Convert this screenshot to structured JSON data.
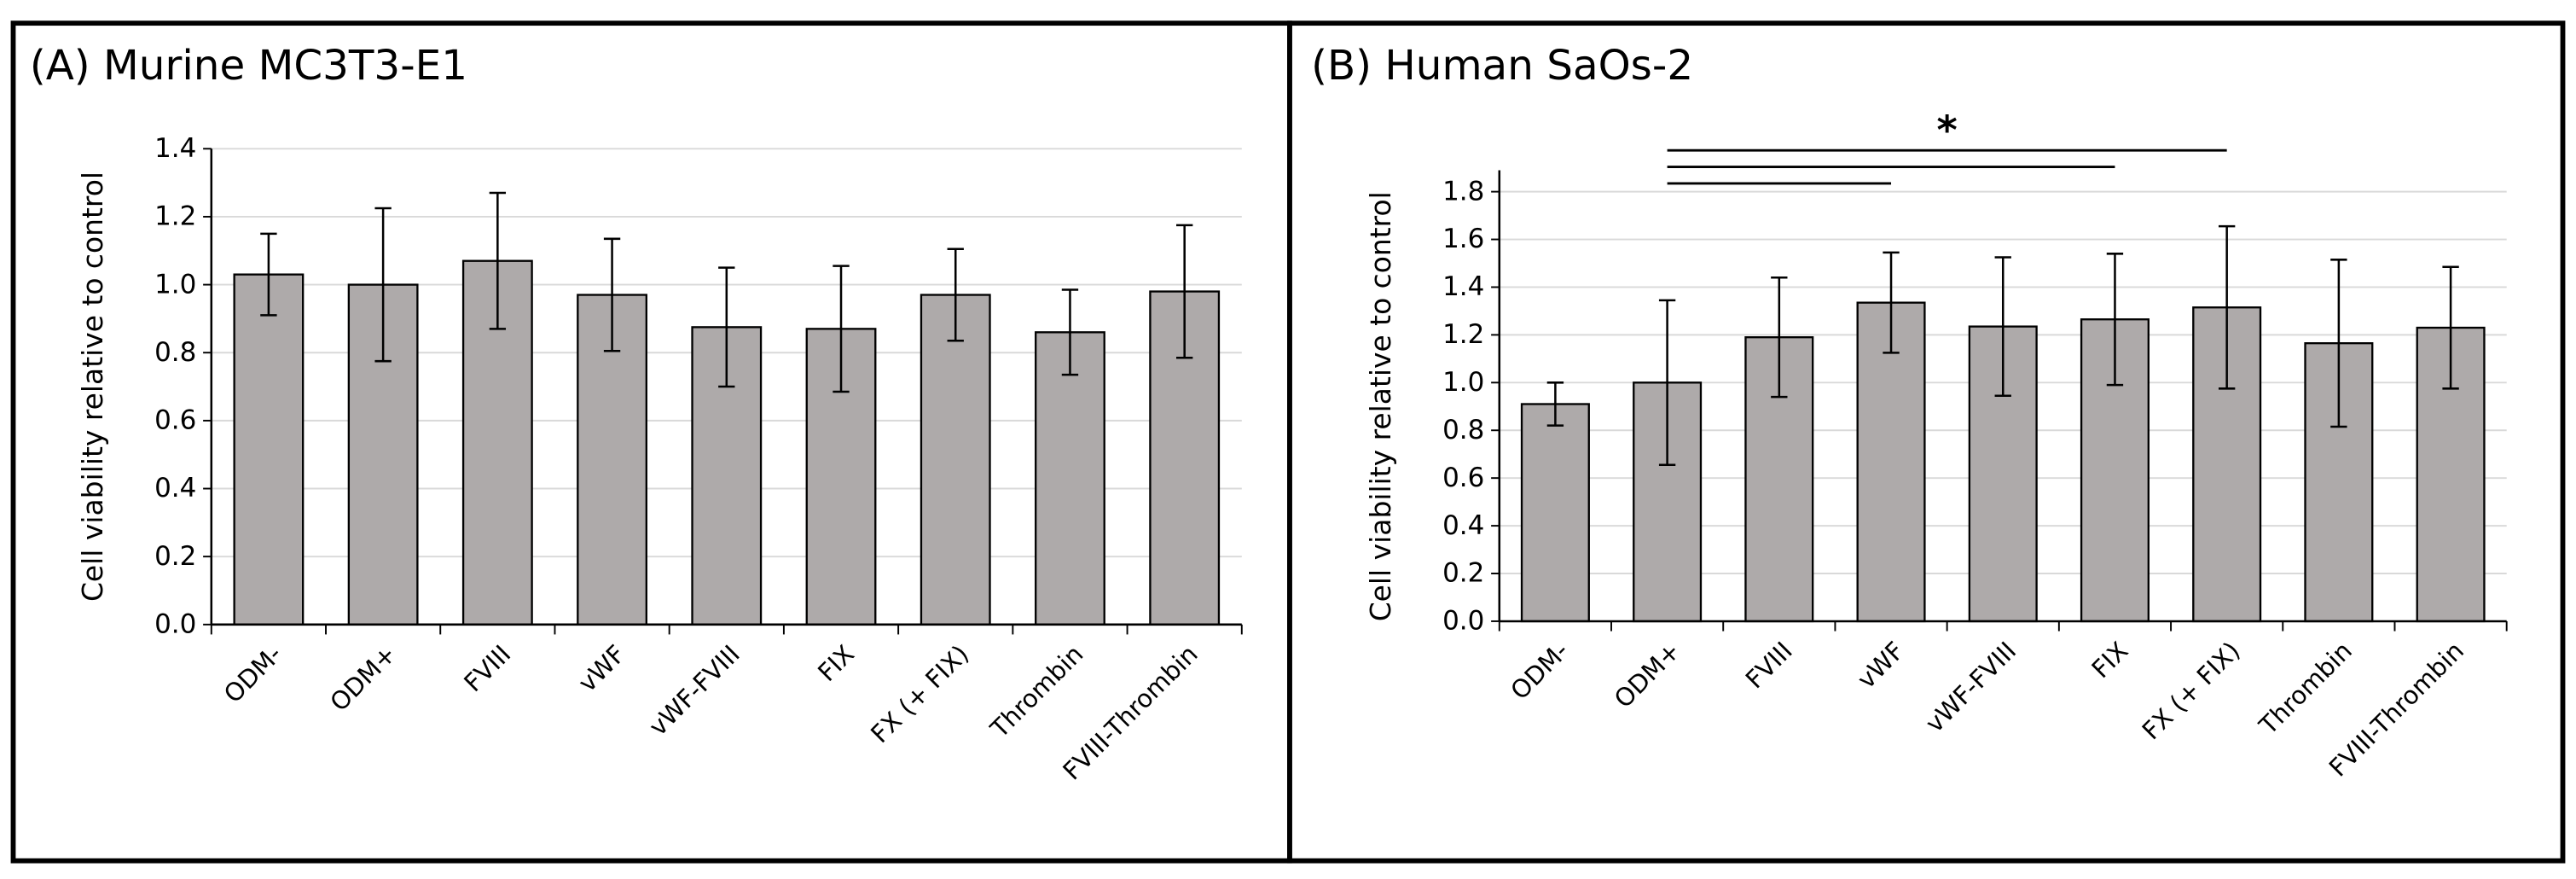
{
  "chart_data": [
    {
      "type": "bar",
      "title": "(A) Murine MC3T3-E1",
      "y_label": "Cell viability relative to control",
      "categories": [
        "ODM-",
        "ODM+",
        "FVIII",
        "vWF",
        "vWF-FVIII",
        "FIX",
        "FX (+ FIX)",
        "Thrombin",
        "FVIII-Thrombin"
      ],
      "values": [
        1.03,
        1.0,
        1.07,
        0.97,
        0.875,
        0.87,
        0.97,
        0.86,
        0.98
      ],
      "errors": [
        0.12,
        0.225,
        0.2,
        0.165,
        0.175,
        0.185,
        0.135,
        0.125,
        0.195
      ],
      "color": "#aeaaaa",
      "ylim": [
        0,
        1.4
      ],
      "yticks": [
        {
          "value": 0,
          "label": "0.0"
        },
        0.2,
        0.4,
        0.6,
        0.8,
        {
          "value": 1,
          "label": "1.0"
        },
        1.2,
        1.4
      ],
      "grid": true
    },
    {
      "type": "bar",
      "title": "(B) Human SaOs-2",
      "y_label": "Cell viability relative to control",
      "categories": [
        "ODM-",
        "ODM+",
        "FVIII",
        "vWF",
        "vWF-FVIII",
        "FIX",
        "FX (+ FIX)",
        "Thrombin",
        "FVIII-Thrombin"
      ],
      "values": [
        0.91,
        1.0,
        1.19,
        1.335,
        1.235,
        1.265,
        1.315,
        1.165,
        1.23
      ],
      "errors": [
        0.09,
        0.345,
        0.25,
        0.21,
        0.29,
        0.275,
        0.34,
        0.35,
        0.255
      ],
      "color": "#aeaaaa",
      "ylim": [
        0,
        1.8
      ],
      "yticks": [
        {
          "value": 0,
          "label": "0.0"
        },
        0.2,
        0.4,
        0.6,
        0.8,
        {
          "value": 1,
          "label": "1.0"
        },
        1.2,
        1.4,
        1.6,
        1.8
      ],
      "grid": true,
      "significance": {
        "label": "*",
        "pairs": [
          [
            "ODM+",
            "vWF"
          ],
          [
            "ODM+",
            "FIX"
          ],
          [
            "ODM+",
            "FX (+ FIX)"
          ]
        ]
      }
    }
  ]
}
